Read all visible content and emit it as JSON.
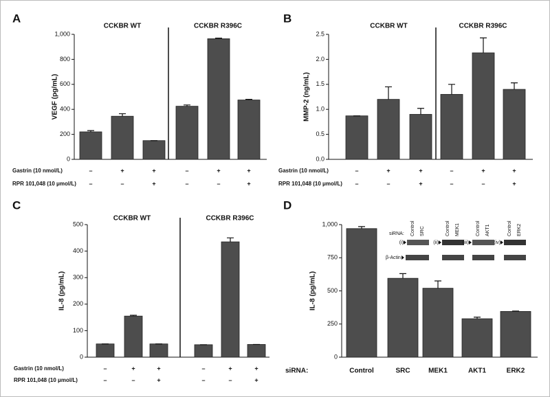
{
  "chart_data": [
    {
      "type": "bar",
      "panel": "A",
      "ylabel": "VEGF (pg/mL)",
      "color": "#4d4d4d",
      "groups": [
        "CCKBR WT",
        "CCKBR R396C"
      ],
      "values": [
        220,
        345,
        150,
        425,
        965,
        475
      ],
      "errors": [
        10,
        20,
        0,
        10,
        5,
        5
      ],
      "ylim": [
        0,
        1000
      ],
      "yticks": [
        0,
        200,
        400,
        600,
        800,
        {
          "value": 1000,
          "label": "1,000"
        }
      ],
      "conditions": [
        {
          "name": "Gastrin (10 nmol/L)",
          "labels": [
            "–",
            "+",
            "+",
            "–",
            "+",
            "+"
          ]
        },
        {
          "name": "RPR 101,048 (10 μmol/L)",
          "labels": [
            "–",
            "–",
            "+",
            "–",
            "–",
            "+"
          ]
        }
      ]
    },
    {
      "type": "bar",
      "panel": "B",
      "ylabel": "MMP-2 (ng/mL)",
      "color": "#4d4d4d",
      "groups": [
        "CCKBR WT",
        "CCKBR R396C"
      ],
      "values": [
        0.87,
        1.2,
        0.9,
        1.3,
        2.13,
        1.4
      ],
      "errors": [
        0,
        0.25,
        0.12,
        0.2,
        0.3,
        0.13
      ],
      "ylim": [
        0,
        2.5
      ],
      "yticks": [
        {
          "value": 0,
          "label": "0.0"
        },
        0.5,
        {
          "value": 1,
          "label": "1.0"
        },
        1.5,
        {
          "value": 2,
          "label": "2.0"
        },
        2.5
      ],
      "conditions": [
        {
          "name": "Gastrin (10 nmol/L)",
          "labels": [
            "–",
            "+",
            "+",
            "–",
            "+",
            "+"
          ]
        },
        {
          "name": "RPR 101,048 (10 μmol/L)",
          "labels": [
            "–",
            "–",
            "+",
            "–",
            "–",
            "+"
          ]
        }
      ]
    },
    {
      "type": "bar",
      "panel": "C",
      "ylabel": "IL-8 (pg/mL)",
      "color": "#4d4d4d",
      "groups": [
        "CCKBR WT",
        "CCKBR R396C"
      ],
      "values": [
        50,
        155,
        50,
        47,
        435,
        48
      ],
      "errors": [
        0,
        3,
        0,
        0,
        15,
        0
      ],
      "ylim": [
        0,
        500
      ],
      "yticks": [
        0,
        100,
        200,
        300,
        400,
        500
      ],
      "conditions": [
        {
          "name": "Gastrin (10 nmol/L)",
          "labels": [
            "–",
            "+",
            "+",
            "–",
            "+",
            "+"
          ]
        },
        {
          "name": "RPR 101,048 (10 μmol/L)",
          "labels": [
            "–",
            "–",
            "+",
            "–",
            "–",
            "+"
          ]
        }
      ]
    },
    {
      "type": "bar",
      "panel": "D",
      "ylabel": "IL-8 (pg/mL)",
      "color": "#4d4d4d",
      "xlabel": "siRNA:",
      "categories": [
        "Control",
        "SRC",
        "MEK1",
        "AKT1",
        "ERK2"
      ],
      "values": [
        970,
        595,
        520,
        290,
        345
      ],
      "errors": [
        15,
        35,
        55,
        12,
        3
      ],
      "ylim": [
        0,
        1000
      ],
      "yticks": [
        0,
        250,
        500,
        750,
        {
          "value": 1000,
          "label": "1,000"
        }
      ],
      "inset": {
        "label": "siRNA:",
        "loading": "β-Actin",
        "blots": [
          {
            "marker": "(i)",
            "lanes": [
              "Control",
              "SRC"
            ]
          },
          {
            "marker": "(ii)",
            "lanes": [
              "Control",
              "MEK1"
            ]
          },
          {
            "marker": "(iii)",
            "lanes": [
              "Control",
              "AKT1"
            ]
          },
          {
            "marker": "(iv)",
            "lanes": [
              "Control",
              "ERK2"
            ]
          }
        ]
      }
    }
  ]
}
